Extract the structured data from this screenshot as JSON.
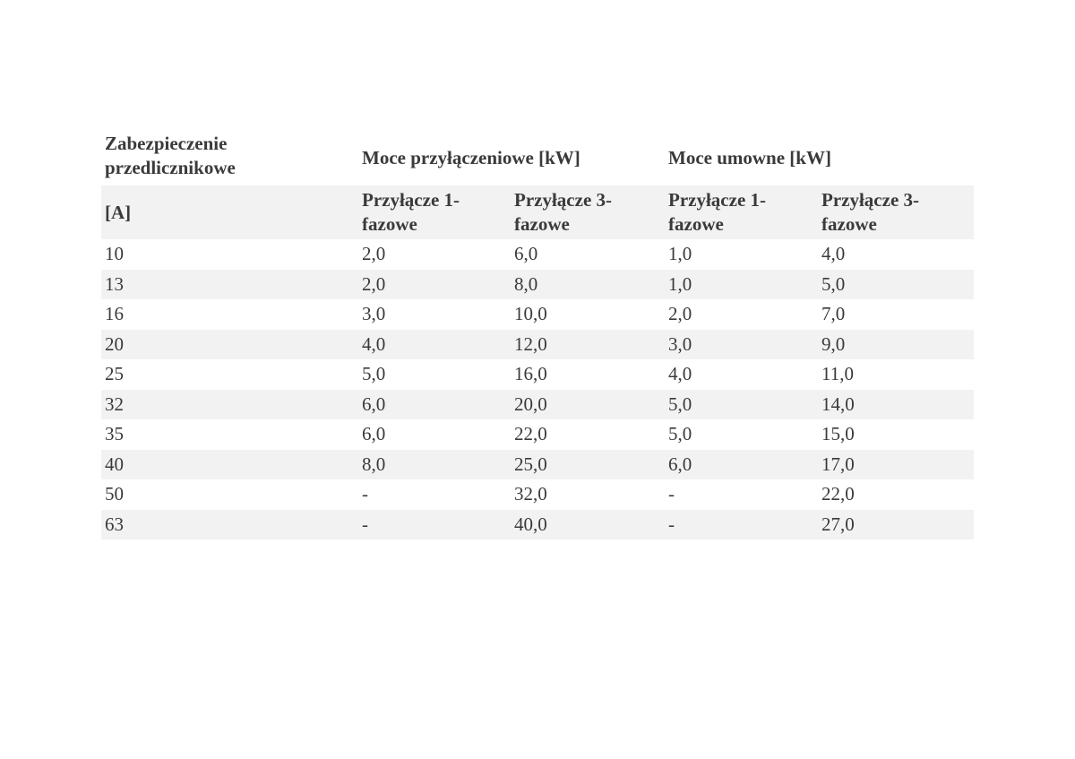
{
  "table": {
    "header": [
      [
        "Zabezpieczenie przedlicznikowe",
        "Moce przyłączeniowe [kW]",
        "Moce umowne [kW]"
      ],
      [
        "[A]",
        "Przyłącze 1-fazowe",
        "Przyłącze 3-fazowe",
        "Przyłącze 1-fazowe",
        "Przyłącze 3-fazowe"
      ]
    ],
    "rows": [
      [
        "10",
        "2,0",
        "6,0",
        "1,0",
        "4,0"
      ],
      [
        "13",
        "2,0",
        "8,0",
        "1,0",
        "5,0"
      ],
      [
        "16",
        "3,0",
        "10,0",
        "2,0",
        "7,0"
      ],
      [
        "20",
        "4,0",
        "12,0",
        "3,0",
        "9,0"
      ],
      [
        "25",
        "5,0",
        "16,0",
        "4,0",
        "11,0"
      ],
      [
        "32",
        "6,0",
        "20,0",
        "5,0",
        "14,0"
      ],
      [
        "35",
        "6,0",
        "22,0",
        "5,0",
        "15,0"
      ],
      [
        "40",
        "8,0",
        "25,0",
        "6,0",
        "17,0"
      ],
      [
        "50",
        "-",
        "32,0",
        "-",
        "22,0"
      ],
      [
        "63",
        "-",
        "40,0",
        "-",
        "27,0"
      ]
    ]
  }
}
